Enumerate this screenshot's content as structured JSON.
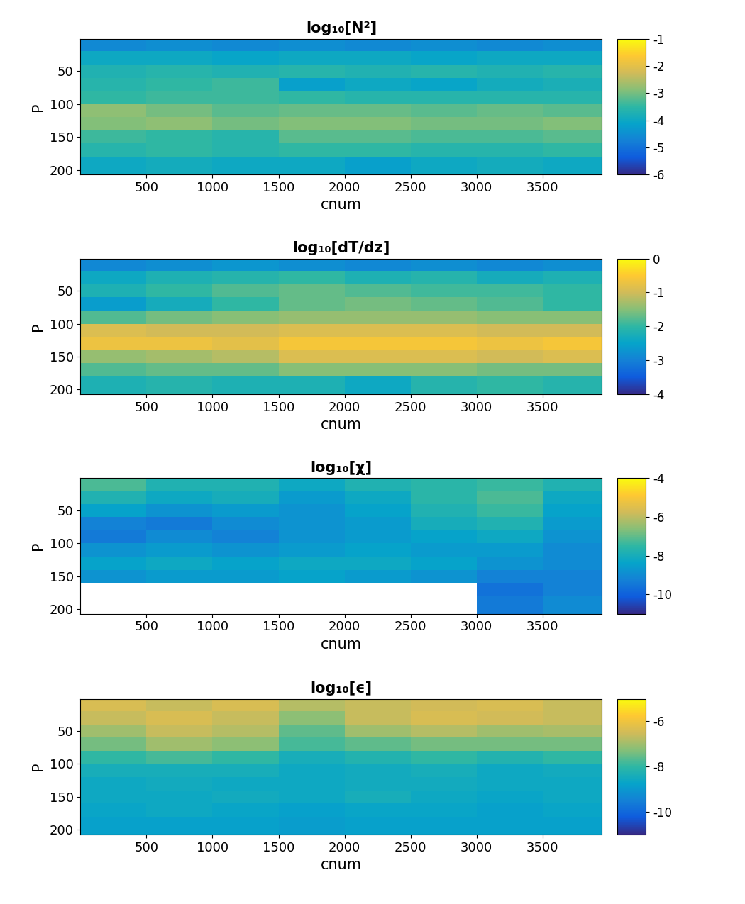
{
  "chart_data": [
    {
      "type": "heatmap",
      "title": "log₁₀[N²]",
      "x_label": "cnum",
      "y_label": "P",
      "xlim": [
        0,
        3950
      ],
      "xticks": [
        500,
        1000,
        1500,
        2000,
        2500,
        3000,
        3500
      ],
      "ylim": [
        207,
        1
      ],
      "yticks": [
        50,
        100,
        150,
        200
      ],
      "x_bins": [
        0,
        500,
        1000,
        1500,
        2000,
        2500,
        3000,
        3500,
        3950
      ],
      "y_bins": [
        0,
        20,
        40,
        60,
        80,
        100,
        120,
        140,
        160,
        180,
        207
      ],
      "color_range": [
        -6,
        -1
      ],
      "color_ticks": [
        -6,
        -5,
        -4,
        -3,
        -2,
        -1
      ],
      "cells": [
        [
          -4.6,
          -4.5,
          -4.6,
          -4.5,
          -4.6,
          -4.5,
          -4.6,
          -4.5
        ],
        [
          -4.0,
          -4.0,
          -4.1,
          -4.0,
          -4.0,
          -4.1,
          -4.0,
          -4.0
        ],
        [
          -3.7,
          -3.6,
          -3.7,
          -3.6,
          -3.7,
          -3.6,
          -3.7,
          -3.6
        ],
        [
          -3.6,
          -3.5,
          -3.4,
          -4.2,
          -4.0,
          -4.1,
          -3.9,
          -3.8
        ],
        [
          -3.5,
          -3.4,
          -3.4,
          -3.5,
          -3.6,
          -3.6,
          -3.6,
          -3.6
        ],
        [
          -2.8,
          -3.0,
          -3.2,
          -3.1,
          -3.1,
          -3.2,
          -3.1,
          -3.2
        ],
        [
          -2.9,
          -2.8,
          -3.0,
          -2.9,
          -2.9,
          -3.0,
          -3.0,
          -2.9
        ],
        [
          -3.4,
          -3.5,
          -3.6,
          -3.2,
          -3.2,
          -3.3,
          -3.3,
          -3.2
        ],
        [
          -3.6,
          -3.5,
          -3.6,
          -3.5,
          -3.5,
          -3.6,
          -3.6,
          -3.5
        ],
        [
          -4.0,
          -3.9,
          -4.0,
          -4.0,
          -4.2,
          -4.0,
          -3.9,
          -4.0
        ]
      ]
    },
    {
      "type": "heatmap",
      "title": "log₁₀[dT/dz]",
      "x_label": "cnum",
      "y_label": "P",
      "xlim": [
        0,
        3950
      ],
      "xticks": [
        500,
        1000,
        1500,
        2000,
        2500,
        3000,
        3500
      ],
      "ylim": [
        207,
        1
      ],
      "yticks": [
        50,
        100,
        150,
        200
      ],
      "x_bins": [
        0,
        500,
        1000,
        1500,
        2000,
        2500,
        3000,
        3500,
        3950
      ],
      "y_bins": [
        0,
        20,
        40,
        60,
        80,
        100,
        120,
        140,
        160,
        180,
        207
      ],
      "color_range": [
        -4,
        0
      ],
      "color_ticks": [
        -4,
        -3,
        -2,
        -1,
        0
      ],
      "cells": [
        [
          -2.9,
          -2.8,
          -2.7,
          -2.8,
          -2.9,
          -2.8,
          -2.9,
          -2.8
        ],
        [
          -2.4,
          -2.2,
          -2.1,
          -2.0,
          -2.2,
          -2.1,
          -2.3,
          -2.2
        ],
        [
          -2.2,
          -2.0,
          -1.8,
          -1.7,
          -1.8,
          -1.9,
          -1.9,
          -2.0
        ],
        [
          -2.6,
          -2.3,
          -2.0,
          -1.7,
          -1.6,
          -1.7,
          -1.8,
          -2.0
        ],
        [
          -1.8,
          -1.6,
          -1.5,
          -1.4,
          -1.4,
          -1.4,
          -1.5,
          -1.5
        ],
        [
          -0.9,
          -1.0,
          -1.0,
          -0.9,
          -0.9,
          -0.9,
          -1.0,
          -1.0
        ],
        [
          -0.7,
          -0.7,
          -0.8,
          -0.6,
          -0.6,
          -0.6,
          -0.7,
          -0.6
        ],
        [
          -1.4,
          -1.3,
          -1.2,
          -0.9,
          -0.9,
          -0.9,
          -1.0,
          -0.9
        ],
        [
          -1.8,
          -1.7,
          -1.7,
          -1.5,
          -1.5,
          -1.5,
          -1.6,
          -1.6
        ],
        [
          -2.2,
          -2.1,
          -2.2,
          -2.2,
          -2.4,
          -2.1,
          -2.0,
          -2.1
        ]
      ]
    },
    {
      "type": "heatmap",
      "title": "log₁₀[χ]",
      "x_label": "cnum",
      "y_label": "P",
      "xlim": [
        0,
        3950
      ],
      "xticks": [
        500,
        1000,
        1500,
        2000,
        2500,
        3000,
        3500
      ],
      "ylim": [
        207,
        1
      ],
      "yticks": [
        50,
        100,
        150,
        200
      ],
      "x_bins": [
        0,
        500,
        1000,
        1500,
        2000,
        2500,
        3000,
        3500,
        3950
      ],
      "y_bins": [
        0,
        20,
        40,
        60,
        80,
        100,
        120,
        140,
        160,
        180,
        207
      ],
      "color_range": [
        -11,
        -4
      ],
      "color_ticks": [
        -10,
        -8,
        -6,
        -4
      ],
      "cells": [
        [
          -7.2,
          -7.8,
          -7.8,
          -8.2,
          -7.8,
          -7.6,
          -7.4,
          -7.8
        ],
        [
          -7.8,
          -8.2,
          -8.0,
          -8.6,
          -8.2,
          -7.6,
          -7.2,
          -8.2
        ],
        [
          -8.4,
          -8.8,
          -8.6,
          -8.8,
          -8.4,
          -7.8,
          -7.4,
          -8.4
        ],
        [
          -9.2,
          -9.4,
          -9.0,
          -8.8,
          -8.6,
          -8.0,
          -7.8,
          -8.6
        ],
        [
          -9.4,
          -9.0,
          -9.2,
          -8.8,
          -8.6,
          -8.4,
          -8.2,
          -8.8
        ],
        [
          -8.8,
          -8.6,
          -8.8,
          -8.6,
          -8.4,
          -8.6,
          -8.6,
          -9.0
        ],
        [
          -8.4,
          -8.2,
          -8.4,
          -8.2,
          -8.2,
          -8.4,
          -8.8,
          -9.0
        ],
        [
          -8.8,
          -8.6,
          -8.6,
          -8.4,
          -8.6,
          -8.8,
          -9.2,
          -9.2
        ],
        [
          null,
          null,
          null,
          null,
          null,
          null,
          -9.6,
          -9.2
        ],
        [
          null,
          null,
          null,
          null,
          null,
          null,
          -9.4,
          -9.0
        ]
      ]
    },
    {
      "type": "heatmap",
      "title": "log₁₀[ϵ]",
      "x_label": "cnum",
      "y_label": "P",
      "xlim": [
        0,
        3950
      ],
      "xticks": [
        500,
        1000,
        1500,
        2000,
        2500,
        3000,
        3500
      ],
      "ylim": [
        207,
        1
      ],
      "yticks": [
        50,
        100,
        150,
        200
      ],
      "x_bins": [
        0,
        500,
        1000,
        1500,
        2000,
        2500,
        3000,
        3500,
        3950
      ],
      "y_bins": [
        0,
        20,
        40,
        60,
        80,
        100,
        120,
        140,
        160,
        180,
        207
      ],
      "color_range": [
        -11,
        -5
      ],
      "color_ticks": [
        -10,
        -8,
        -6
      ],
      "cells": [
        [
          -6.4,
          -6.6,
          -6.4,
          -6.8,
          -6.6,
          -6.5,
          -6.4,
          -6.6
        ],
        [
          -6.6,
          -6.4,
          -6.6,
          -7.2,
          -6.6,
          -6.4,
          -6.5,
          -6.6
        ],
        [
          -7.0,
          -6.6,
          -6.8,
          -7.6,
          -7.0,
          -6.8,
          -7.0,
          -6.9
        ],
        [
          -7.4,
          -7.0,
          -7.2,
          -7.8,
          -7.6,
          -7.4,
          -7.4,
          -7.4
        ],
        [
          -8.0,
          -7.8,
          -8.0,
          -8.4,
          -8.2,
          -8.0,
          -8.2,
          -8.0
        ],
        [
          -8.4,
          -8.4,
          -8.4,
          -8.6,
          -8.5,
          -8.4,
          -8.6,
          -8.5
        ],
        [
          -8.6,
          -8.5,
          -8.6,
          -8.6,
          -8.5,
          -8.5,
          -8.6,
          -8.6
        ],
        [
          -8.6,
          -8.6,
          -8.5,
          -8.6,
          -8.4,
          -8.6,
          -8.7,
          -8.6
        ],
        [
          -8.7,
          -8.6,
          -8.7,
          -8.8,
          -8.7,
          -8.7,
          -8.8,
          -8.7
        ],
        [
          -8.8,
          -8.8,
          -8.8,
          -8.9,
          -8.8,
          -8.8,
          -8.8,
          -8.8
        ]
      ]
    }
  ]
}
